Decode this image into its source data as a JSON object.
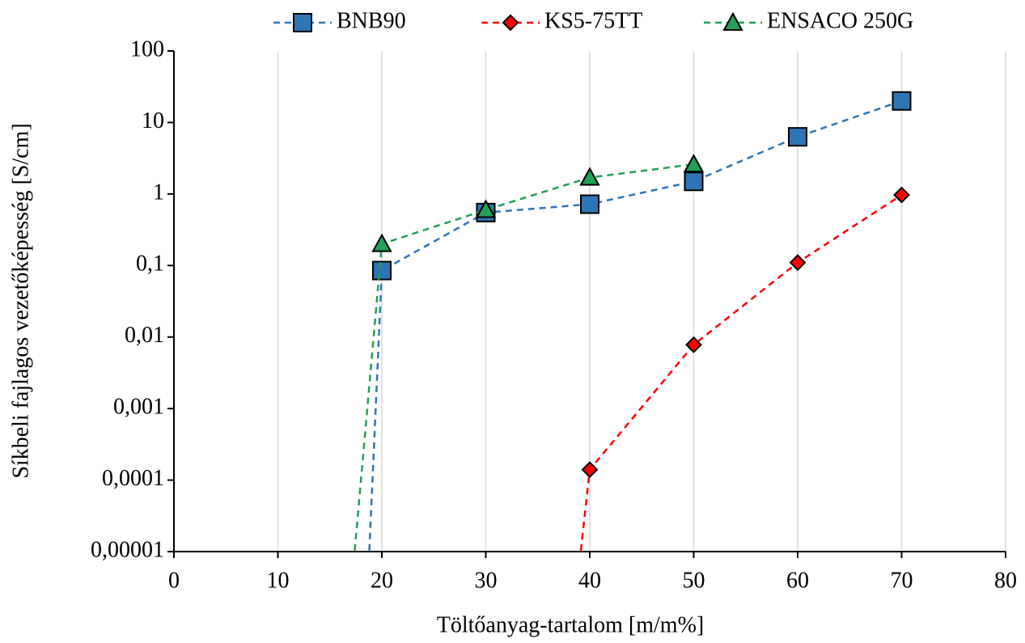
{
  "chart_data": {
    "type": "line",
    "xlabel": "Töltőanyag-tartalom [m/m%]",
    "ylabel": "Síkbeli fajlagos vezetőképesség [S/cm]",
    "log_y": true,
    "xgrid": true,
    "ygrid": false,
    "legend": "top",
    "xlim": [
      0,
      80
    ],
    "xticks": [
      0,
      10,
      20,
      30,
      40,
      50,
      60,
      70,
      80
    ],
    "ylim": [
      1e-05,
      100
    ],
    "yticks": [
      {
        "value": 1e-05,
        "label": "0,00001"
      },
      {
        "value": 0.0001,
        "label": "0,0001"
      },
      {
        "value": 0.001,
        "label": "0,001"
      },
      {
        "value": 0.01,
        "label": "0,01"
      },
      {
        "value": 0.1,
        "label": "0,1"
      },
      1,
      10,
      100
    ],
    "series": [
      {
        "name": "BNB90",
        "color": "#2e75b6",
        "marker": "square",
        "x": [
          18.7,
          20,
          30,
          40,
          50,
          60,
          70
        ],
        "values": [
          5e-06,
          0.085,
          0.55,
          0.72,
          1.5,
          6.3,
          20
        ]
      },
      {
        "name": "KS5-75TT",
        "color": "#ff0000",
        "marker": "diamond",
        "x": [
          38.9,
          40,
          50,
          60,
          70
        ],
        "values": [
          5e-06,
          0.00014,
          0.0078,
          0.11,
          0.97
        ]
      },
      {
        "name": "ENSACO 250G",
        "color": "#21a056",
        "marker": "triangle",
        "x": [
          17.2,
          20,
          30,
          40,
          50
        ],
        "values": [
          5e-06,
          0.2,
          0.6,
          1.7,
          2.6
        ]
      }
    ]
  }
}
